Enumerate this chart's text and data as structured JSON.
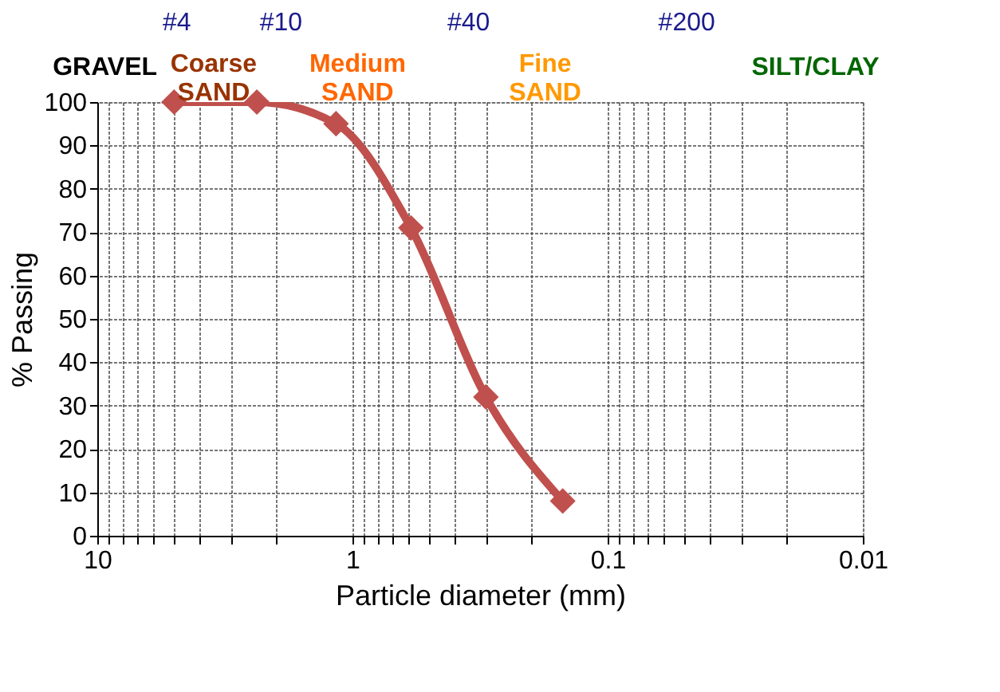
{
  "chart_data": {
    "type": "line",
    "xlabel": "Particle diameter (mm)",
    "ylabel": "% Passing",
    "x": [
      5,
      2.37,
      1.16,
      0.59,
      0.3,
      0.15
    ],
    "series": [
      {
        "color": "#c0504d",
        "values": [
          100,
          100,
          95,
          71,
          32,
          8
        ]
      }
    ],
    "xlim": [
      10,
      0.01
    ],
    "xticks": [
      10,
      {
        "value": 9,
        "label": null
      },
      {
        "value": 8,
        "label": null
      },
      {
        "value": 7,
        "label": null
      },
      {
        "value": 6,
        "label": null
      },
      {
        "value": 5,
        "label": null
      },
      {
        "value": 4,
        "label": null
      },
      {
        "value": 3,
        "label": null
      },
      {
        "value": 2,
        "label": null
      },
      1,
      {
        "value": 0.9,
        "label": null
      },
      {
        "value": 0.8,
        "label": null
      },
      {
        "value": 0.7,
        "label": null
      },
      {
        "value": 0.6,
        "label": null
      },
      {
        "value": 0.5,
        "label": null
      },
      {
        "value": 0.4,
        "label": null
      },
      {
        "value": 0.3,
        "label": null
      },
      {
        "value": 0.2,
        "label": null
      },
      0.1,
      {
        "value": 0.09,
        "label": null
      },
      {
        "value": 0.08,
        "label": null
      },
      {
        "value": 0.07,
        "label": null
      },
      {
        "value": 0.06,
        "label": null
      },
      {
        "value": 0.05,
        "label": null
      },
      {
        "value": 0.04,
        "label": null
      },
      {
        "value": 0.03,
        "label": null
      },
      {
        "value": 0.02,
        "label": null
      },
      0.01
    ],
    "ylim": [
      0,
      100
    ],
    "yticks": [
      0,
      10,
      20,
      30,
      40,
      50,
      60,
      70,
      80,
      90,
      100
    ],
    "log": "x",
    "grid": true,
    "marker": "diamond",
    "line_style": "solid",
    "annotations": [
      "#4",
      "#10",
      "#40",
      "#200",
      "GRAVEL",
      "Coarse\nSAND",
      "Medium\nSAND",
      "Fine\nSAND",
      "SILT/CLAY"
    ]
  }
}
